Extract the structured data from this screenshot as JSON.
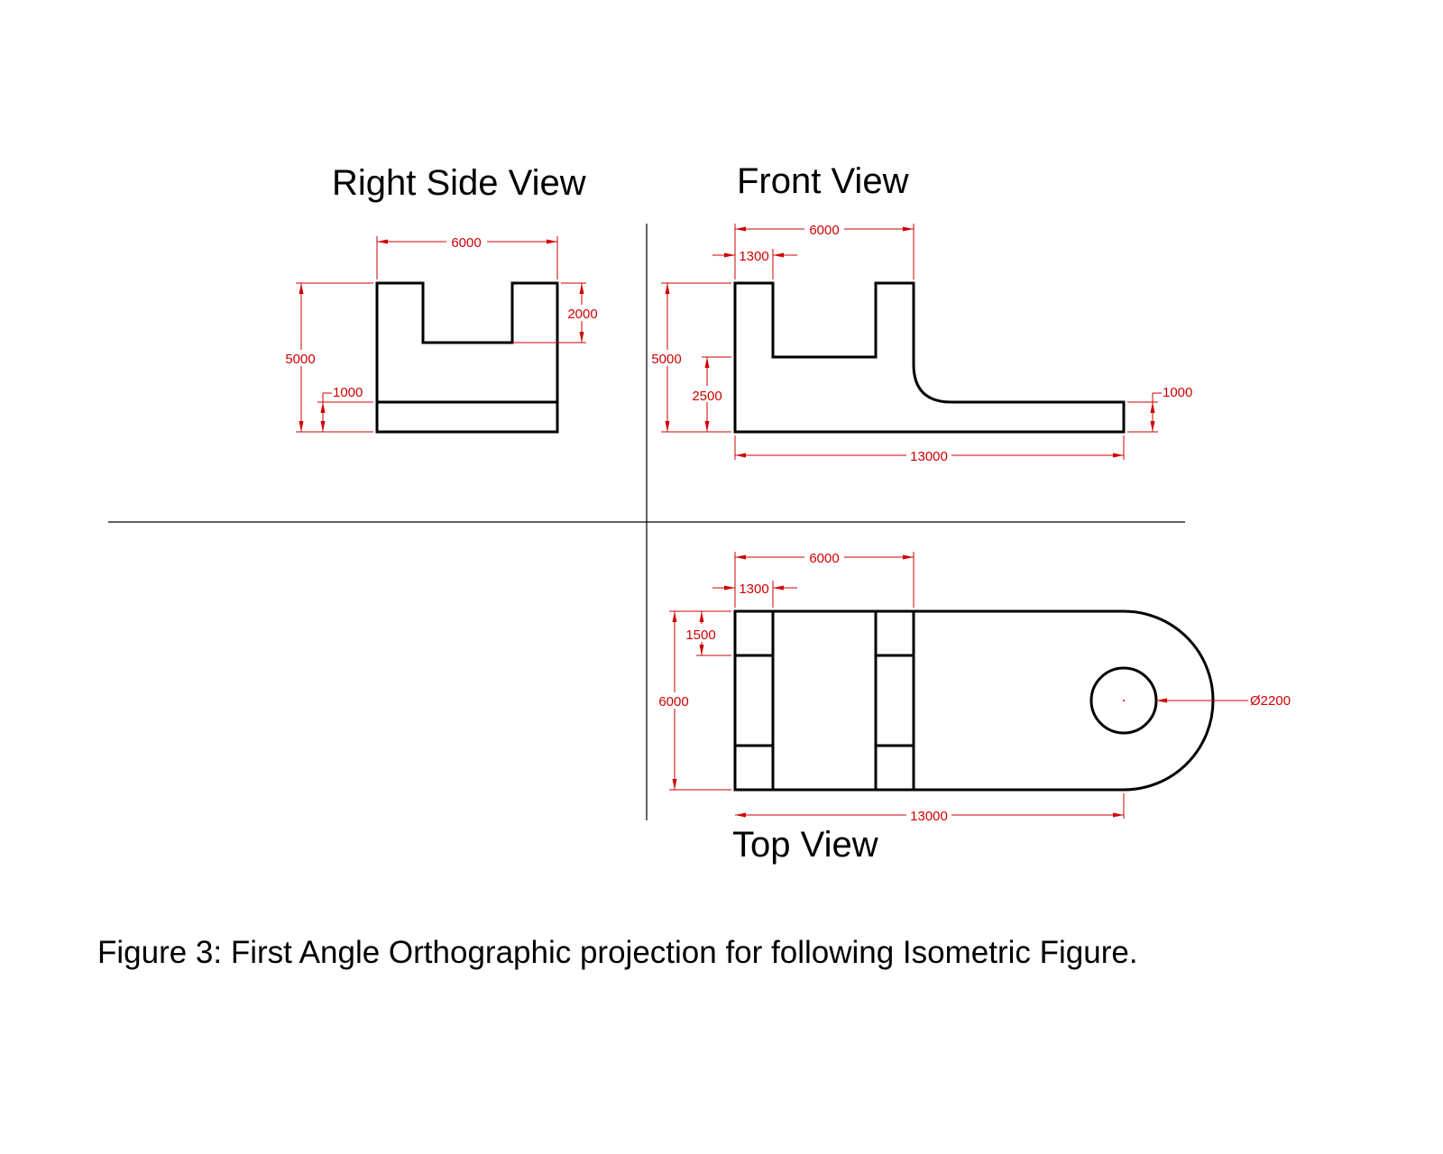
{
  "titles": {
    "right_side": "Right Side View",
    "front": "Front View",
    "top": "Top View"
  },
  "caption": "Figure 3: First Angle Orthographic projection for following Isometric Figure.",
  "dimensions": {
    "right_side": {
      "width": "6000",
      "height": "5000",
      "slot_depth": "2000",
      "base": "1000"
    },
    "front": {
      "width_top": "6000",
      "post": "1300",
      "height": "5000",
      "mid": "2500",
      "base": "1000",
      "length": "13000"
    },
    "top": {
      "width_top": "6000",
      "post": "1300",
      "slot": "1500",
      "depth": "6000",
      "hole": "Ø2200",
      "length": "13000"
    }
  },
  "colors": {
    "object": "#000000",
    "dimension": "#d00000"
  }
}
